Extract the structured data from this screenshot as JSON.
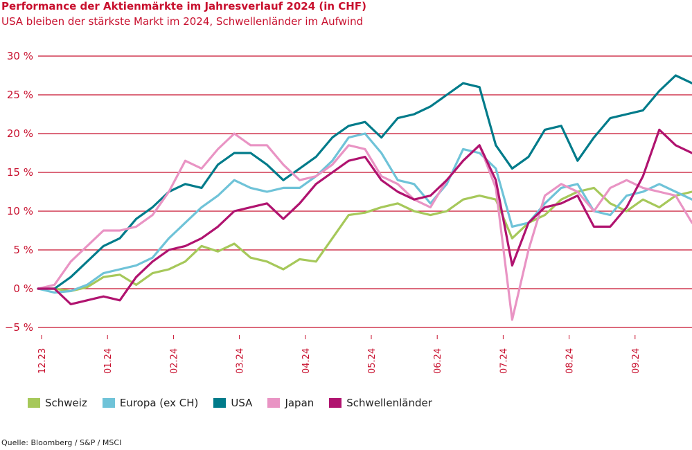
{
  "title": "Performance der Aktienmärkte im Jahresverlauf 2024 (in CHF)",
  "subtitle": "USA bleiben der stärkste Markt im 2024, Schwellenländer im Aufwind",
  "source": "Quelle: Bloomberg / S&P / MSCI",
  "colors": {
    "grid": "#c8102e",
    "axis_text": "#c8102e"
  },
  "chart_data": {
    "type": "line",
    "ylim": [
      -5,
      30
    ],
    "ytick_values": [
      -5,
      0,
      5,
      10,
      15,
      20,
      25,
      30
    ],
    "ytick_labels": [
      "−5 %",
      "0 %",
      "5 %",
      "10 %",
      "15 %",
      "20 %",
      "25 %",
      "30 %"
    ],
    "xtick_labels": [
      "12.23",
      "01.24",
      "02.24",
      "03.24",
      "04.24",
      "05.24",
      "06.24",
      "07.24",
      "08.24",
      "09.24"
    ],
    "x_label_points": [
      "12.23",
      "12.23",
      "12.23",
      "12.23",
      "01.24",
      "01.24",
      "01.24",
      "01.24",
      "02.24",
      "02.24",
      "02.24",
      "02.24",
      "03.24",
      "03.24",
      "03.24",
      "03.24",
      "04.24",
      "04.24",
      "04.24",
      "04.24",
      "05.24",
      "05.24",
      "05.24",
      "05.24",
      "06.24",
      "06.24",
      "06.24",
      "06.24",
      "07.24",
      "07.24",
      "07.24",
      "07.24",
      "08.24",
      "08.24",
      "08.24",
      "08.24",
      "09.24",
      "09.24",
      "09.24",
      "09.24",
      "09.24"
    ],
    "legend_position": "bottom",
    "series": [
      {
        "name": "Schweiz",
        "color": "#a6c85a",
        "values": [
          0,
          0,
          -0.3,
          0.2,
          1.5,
          1.8,
          0.5,
          2.0,
          2.5,
          3.5,
          5.5,
          4.8,
          5.8,
          4.0,
          3.5,
          2.5,
          3.8,
          3.5,
          6.5,
          9.5,
          9.8,
          10.5,
          11.0,
          10.0,
          9.5,
          10.0,
          11.5,
          12.0,
          11.5,
          6.5,
          8.5,
          9.5,
          11.5,
          12.5,
          13.0,
          11.0,
          10.0,
          11.5,
          10.5,
          12.0,
          12.5
        ]
      },
      {
        "name": "Europa (ex CH)",
        "color": "#6fc3d8",
        "values": [
          0,
          -0.5,
          -0.3,
          0.5,
          2.0,
          2.5,
          3.0,
          4.0,
          6.5,
          8.5,
          10.5,
          12.0,
          14.0,
          13.0,
          12.5,
          13.0,
          13.0,
          14.5,
          16.5,
          19.5,
          20.0,
          17.5,
          14.0,
          13.5,
          11.0,
          13.5,
          18.0,
          17.5,
          15.5,
          8.0,
          8.5,
          11.0,
          13.0,
          13.5,
          10.0,
          9.5,
          12.0,
          12.5,
          13.5,
          12.5,
          11.5
        ]
      },
      {
        "name": "USA",
        "color": "#007b8a",
        "values": [
          0,
          0,
          1.5,
          3.5,
          5.5,
          6.5,
          9.0,
          10.5,
          12.5,
          13.5,
          13.0,
          16.0,
          17.5,
          17.5,
          16.0,
          14.0,
          15.5,
          17.0,
          19.5,
          21.0,
          21.5,
          19.5,
          22.0,
          22.5,
          23.5,
          25.0,
          26.5,
          26.0,
          18.5,
          15.5,
          17.0,
          20.5,
          21.0,
          16.5,
          19.5,
          22.0,
          22.5,
          23.0,
          25.5,
          27.5,
          26.5
        ]
      },
      {
        "name": "Japan",
        "color": "#e994c4",
        "values": [
          0,
          0.5,
          3.5,
          5.5,
          7.5,
          7.5,
          8.0,
          9.5,
          12.5,
          16.5,
          15.5,
          18.0,
          20.0,
          18.5,
          18.5,
          16.0,
          14.0,
          14.5,
          16.0,
          18.5,
          18.0,
          14.5,
          13.5,
          11.5,
          10.5,
          14.0,
          16.5,
          18.5,
          13.0,
          -4.0,
          5.0,
          12.0,
          13.5,
          12.5,
          10.0,
          13.0,
          14.0,
          13.0,
          12.5,
          12.0,
          8.5
        ]
      },
      {
        "name": "Schwellenländer",
        "color": "#b0136f",
        "values": [
          0,
          0,
          -2.0,
          -1.5,
          -1.0,
          -1.5,
          1.5,
          3.5,
          5.0,
          5.5,
          6.5,
          8.0,
          10.0,
          10.5,
          11.0,
          9.0,
          11.0,
          13.5,
          15.0,
          16.5,
          17.0,
          14.0,
          12.5,
          11.5,
          12.0,
          14.0,
          16.5,
          18.5,
          14.0,
          3.0,
          8.5,
          10.5,
          11.0,
          12.0,
          8.0,
          8.0,
          10.5,
          14.5,
          20.5,
          18.5,
          17.5
        ]
      }
    ]
  }
}
